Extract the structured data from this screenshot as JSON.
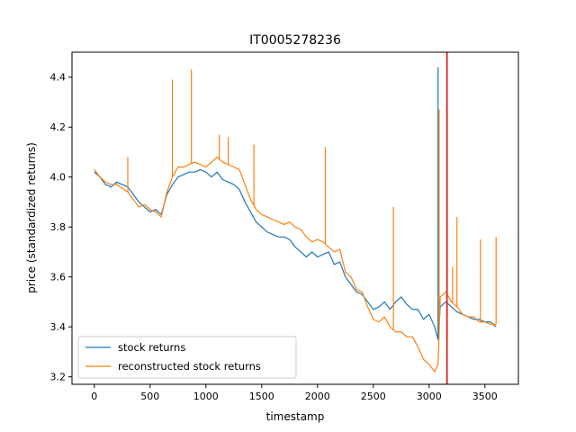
{
  "chart_data": {
    "type": "line",
    "title": "IT0005278236",
    "xlabel": "timestamp",
    "ylabel": "price (standardized returns)",
    "xlim": [
      -200,
      3800
    ],
    "ylim": [
      3.17,
      4.5
    ],
    "xticks": [
      0,
      500,
      1000,
      1500,
      2000,
      2500,
      3000,
      3500
    ],
    "yticks": [
      3.2,
      3.4,
      3.6,
      3.8,
      4.0,
      4.2,
      4.4
    ],
    "grid": false,
    "legend": "lower-left",
    "vline": {
      "x": 3160,
      "color": "#d62728"
    },
    "series": [
      {
        "name": "stock returns",
        "color": "#1f77b4",
        "x": [
          0,
          50,
          100,
          150,
          200,
          300,
          350,
          400,
          450,
          500,
          550,
          600,
          650,
          700,
          750,
          800,
          850,
          900,
          950,
          1000,
          1050,
          1100,
          1150,
          1200,
          1250,
          1300,
          1350,
          1400,
          1450,
          1500,
          1550,
          1600,
          1650,
          1700,
          1750,
          1800,
          1850,
          1900,
          1950,
          2000,
          2050,
          2100,
          2150,
          2200,
          2250,
          2300,
          2350,
          2400,
          2450,
          2500,
          2550,
          2600,
          2650,
          2700,
          2750,
          2800,
          2850,
          2900,
          2950,
          3000,
          3050,
          3080,
          3100,
          3150,
          3200,
          3250,
          3300,
          3350,
          3400,
          3450,
          3500,
          3550,
          3600
        ],
        "values": [
          4.02,
          4.0,
          3.97,
          3.96,
          3.98,
          3.96,
          3.93,
          3.9,
          3.88,
          3.86,
          3.87,
          3.85,
          3.93,
          3.97,
          4.0,
          4.01,
          4.02,
          4.02,
          4.03,
          4.02,
          4.0,
          4.02,
          3.99,
          3.98,
          3.97,
          3.95,
          3.9,
          3.86,
          3.82,
          3.8,
          3.78,
          3.77,
          3.76,
          3.76,
          3.75,
          3.72,
          3.7,
          3.68,
          3.7,
          3.68,
          3.69,
          3.7,
          3.65,
          3.66,
          3.6,
          3.57,
          3.54,
          3.53,
          3.5,
          3.47,
          3.48,
          3.5,
          3.47,
          3.5,
          3.52,
          3.49,
          3.47,
          3.47,
          3.43,
          3.45,
          3.4,
          3.35,
          3.48,
          3.5,
          3.48,
          3.46,
          3.45,
          3.44,
          3.43,
          3.43,
          3.42,
          3.42,
          3.4
        ]
      },
      {
        "name": "reconstructed stock returns",
        "color": "#ff7f0e",
        "x": [
          0,
          50,
          100,
          150,
          200,
          300,
          350,
          400,
          450,
          500,
          550,
          600,
          650,
          700,
          750,
          800,
          850,
          900,
          950,
          1000,
          1050,
          1100,
          1150,
          1200,
          1250,
          1300,
          1350,
          1400,
          1450,
          1500,
          1550,
          1600,
          1650,
          1700,
          1750,
          1800,
          1850,
          1900,
          1950,
          2000,
          2050,
          2100,
          2150,
          2200,
          2250,
          2300,
          2350,
          2400,
          2450,
          2500,
          2550,
          2600,
          2650,
          2700,
          2750,
          2800,
          2850,
          2900,
          2950,
          3000,
          3050,
          3080,
          3100,
          3150,
          3200,
          3250,
          3300,
          3350,
          3400,
          3450,
          3500,
          3550,
          3600
        ],
        "values": [
          4.03,
          4.0,
          3.98,
          3.97,
          3.97,
          3.94,
          3.91,
          3.88,
          3.89,
          3.87,
          3.86,
          3.84,
          3.94,
          4.0,
          4.04,
          4.04,
          4.05,
          4.06,
          4.05,
          4.04,
          4.06,
          4.08,
          4.06,
          4.05,
          4.04,
          4.03,
          3.97,
          3.91,
          3.87,
          3.85,
          3.84,
          3.83,
          3.82,
          3.81,
          3.82,
          3.8,
          3.79,
          3.76,
          3.74,
          3.75,
          3.74,
          3.72,
          3.7,
          3.71,
          3.62,
          3.6,
          3.55,
          3.54,
          3.48,
          3.43,
          3.42,
          3.44,
          3.4,
          3.38,
          3.38,
          3.36,
          3.36,
          3.32,
          3.27,
          3.25,
          3.22,
          3.25,
          3.52,
          3.54,
          3.5,
          3.48,
          3.45,
          3.44,
          3.44,
          3.42,
          3.42,
          3.41,
          3.41
        ]
      }
    ],
    "spikes": [
      {
        "series": 1,
        "x": 300,
        "to": 4.08
      },
      {
        "series": 1,
        "x": 700,
        "to": 4.39
      },
      {
        "series": 1,
        "x": 870,
        "to": 4.43
      },
      {
        "series": 1,
        "x": 1120,
        "to": 4.17
      },
      {
        "series": 1,
        "x": 1200,
        "to": 4.16
      },
      {
        "series": 1,
        "x": 1430,
        "to": 4.13
      },
      {
        "series": 1,
        "x": 2070,
        "to": 4.12
      },
      {
        "series": 1,
        "x": 2680,
        "to": 3.88
      },
      {
        "series": 1,
        "x": 3090,
        "to": 4.27
      },
      {
        "series": 0,
        "x": 3080,
        "to": 4.44
      },
      {
        "series": 1,
        "x": 3210,
        "to": 3.64
      },
      {
        "series": 1,
        "x": 3250,
        "to": 3.84
      },
      {
        "series": 1,
        "x": 3460,
        "to": 3.75
      },
      {
        "series": 1,
        "x": 3600,
        "to": 3.76
      }
    ]
  }
}
